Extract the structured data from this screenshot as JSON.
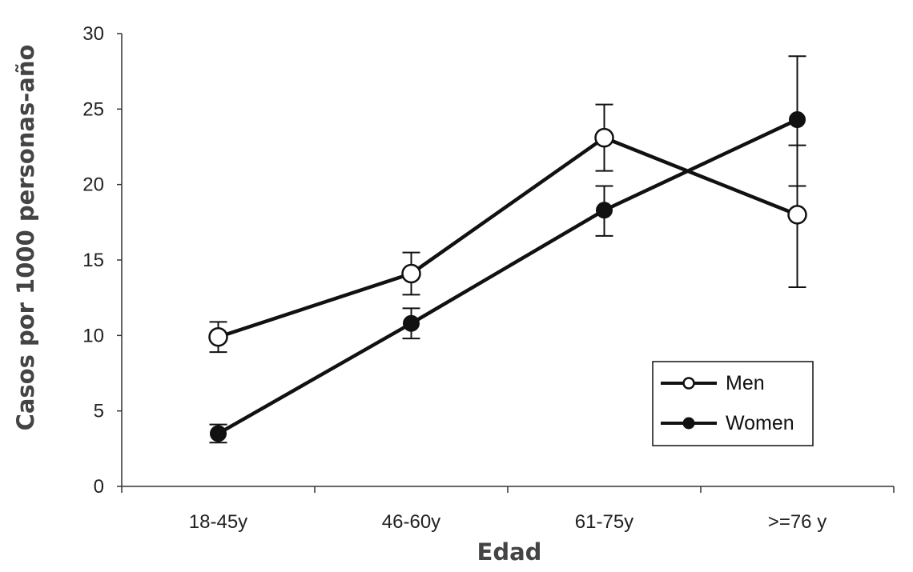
{
  "chart_data": {
    "type": "line",
    "title": "",
    "xlabel": "Edad",
    "ylabel": "Casos por 1000 personas-año",
    "categories": [
      "18-45y",
      "46-60y",
      "61-75y",
      ">=76 y"
    ],
    "ylim": [
      0,
      30
    ],
    "yticks": [
      0,
      5,
      10,
      15,
      20,
      25,
      30
    ],
    "grid": false,
    "legend_position": "bottom-right",
    "series": [
      {
        "name": "Men",
        "marker": "open-circle",
        "values": [
          9.9,
          14.1,
          23.1,
          18.0
        ],
        "error_low": [
          8.9,
          12.7,
          20.9,
          13.2
        ],
        "error_high": [
          10.9,
          15.5,
          25.3,
          22.6
        ]
      },
      {
        "name": "Women",
        "marker": "filled-circle",
        "values": [
          3.5,
          10.8,
          18.3,
          24.3
        ],
        "error_low": [
          2.9,
          9.8,
          16.6,
          19.9
        ],
        "error_high": [
          4.1,
          11.8,
          19.9,
          28.5
        ]
      }
    ],
    "colors": {
      "line": "#111111",
      "open_fill": "#ffffff",
      "filled_fill": "#111111"
    }
  }
}
